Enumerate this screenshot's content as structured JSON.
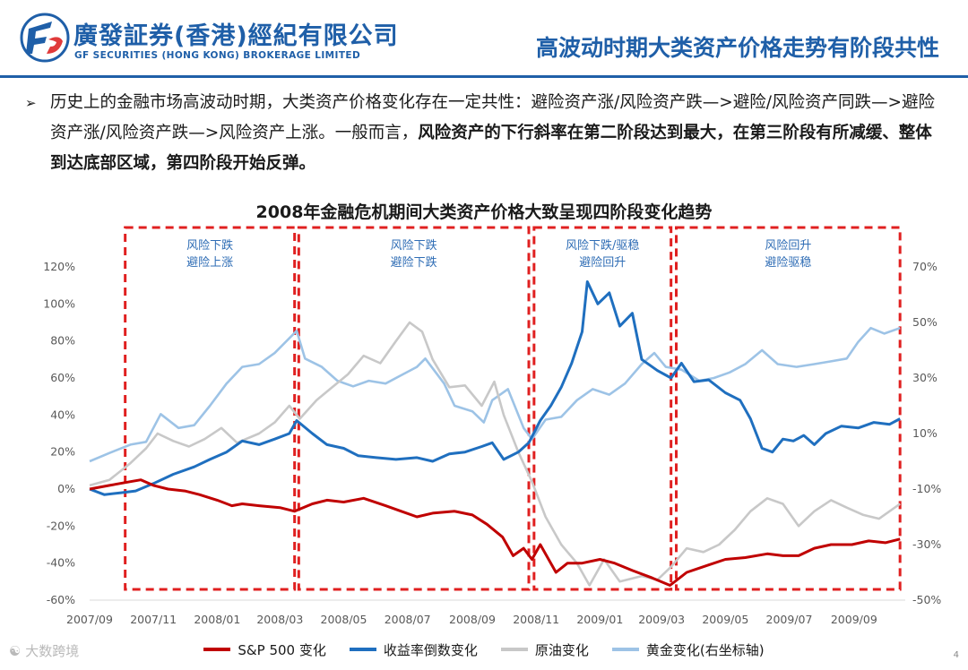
{
  "header": {
    "company_cn": "廣發証券(香港)經紀有限公司",
    "company_en": "GF SECURITIES (HONG KONG) BROKERAGE LIMITED",
    "page_title": "高波动时期大类资产价格走势有阶段共性"
  },
  "bullet": {
    "marker": "➢",
    "text_normal": "历史上的金融市场高波动时期，大类资产价格变化存在一定共性：避险资产涨/风险资产跌—>避险/风险资产同跌—>避险资产涨/风险资产跌—>风险资产上涨。一般而言，",
    "text_bold": "风险资产的下行斜率在第二阶段达到最大，在第三阶段有所减缓、整体到达底部区域，第四阶段开始反弹。"
  },
  "watermark": "大数跨境",
  "page_number": "4",
  "chart_data": {
    "type": "line",
    "title": "2008年金融危机期间大类资产价格大致呈现四阶段变化趋势",
    "x_tick_labels": [
      "2007/09",
      "2007/11",
      "2008/01",
      "2008/03",
      "2008/05",
      "2008/07",
      "2008/09",
      "2008/11",
      "2009/01",
      "2009/03",
      "2009/05",
      "2009/07",
      "2009/09"
    ],
    "x_range": [
      "2007-09-01",
      "2009-10-20"
    ],
    "y_left": {
      "ticks": [
        "120%",
        "100%",
        "80%",
        "60%",
        "40%",
        "20%",
        "0%",
        "-20%",
        "-40%",
        "-60%"
      ],
      "range": [
        -60,
        120
      ]
    },
    "y_right": {
      "ticks": [
        "70%",
        "50%",
        "30%",
        "10%",
        "-10%",
        "-30%",
        "-50%"
      ],
      "range": [
        -50,
        70
      ]
    },
    "grid": false,
    "legend_position": "bottom",
    "phases": [
      {
        "label_line1": "风险下跌",
        "label_line2": "避险上涨",
        "start": "2007-10-05",
        "end": "2008-03-15"
      },
      {
        "label_line1": "风险下跌",
        "label_line2": "避险下跌",
        "start": "2008-03-19",
        "end": "2008-10-25"
      },
      {
        "label_line1": "风险下跌/驱稳",
        "label_line2": "避险回升",
        "start": "2008-10-30",
        "end": "2009-03-10"
      },
      {
        "label_line1": "风险回升",
        "label_line2": "避险驱稳",
        "start": "2009-03-15",
        "end": "2009-10-15"
      }
    ],
    "series": [
      {
        "name": "S&P 500 变化",
        "axis": "left",
        "color": "#c00000",
        "points": [
          [
            "2007-09-01",
            0
          ],
          [
            "2007-09-20",
            2
          ],
          [
            "2007-10-10",
            4
          ],
          [
            "2007-10-20",
            5
          ],
          [
            "2007-11-01",
            2
          ],
          [
            "2007-11-15",
            0
          ],
          [
            "2007-12-01",
            -1
          ],
          [
            "2007-12-15",
            -3
          ],
          [
            "2008-01-01",
            -6
          ],
          [
            "2008-01-15",
            -9
          ],
          [
            "2008-01-25",
            -8
          ],
          [
            "2008-02-10",
            -9
          ],
          [
            "2008-03-01",
            -10
          ],
          [
            "2008-03-15",
            -12
          ],
          [
            "2008-04-01",
            -8
          ],
          [
            "2008-04-15",
            -6
          ],
          [
            "2008-05-01",
            -7
          ],
          [
            "2008-05-20",
            -5
          ],
          [
            "2008-06-10",
            -9
          ],
          [
            "2008-06-25",
            -12
          ],
          [
            "2008-07-10",
            -15
          ],
          [
            "2008-07-25",
            -13
          ],
          [
            "2008-08-15",
            -12
          ],
          [
            "2008-09-01",
            -14
          ],
          [
            "2008-09-15",
            -19
          ],
          [
            "2008-09-30",
            -26
          ],
          [
            "2008-10-10",
            -36
          ],
          [
            "2008-10-20",
            -32
          ],
          [
            "2008-10-28",
            -38
          ],
          [
            "2008-11-05",
            -30
          ],
          [
            "2008-11-20",
            -45
          ],
          [
            "2008-12-01",
            -40
          ],
          [
            "2008-12-15",
            -40
          ],
          [
            "2009-01-01",
            -38
          ],
          [
            "2009-01-15",
            -40
          ],
          [
            "2009-02-01",
            -44
          ],
          [
            "2009-02-20",
            -48
          ],
          [
            "2009-03-09",
            -52
          ],
          [
            "2009-03-25",
            -45
          ],
          [
            "2009-04-15",
            -41
          ],
          [
            "2009-05-01",
            -38
          ],
          [
            "2009-05-20",
            -37
          ],
          [
            "2009-06-10",
            -35
          ],
          [
            "2009-06-25",
            -36
          ],
          [
            "2009-07-10",
            -36
          ],
          [
            "2009-07-25",
            -32
          ],
          [
            "2009-08-10",
            -30
          ],
          [
            "2009-08-30",
            -30
          ],
          [
            "2009-09-15",
            -28
          ],
          [
            "2009-10-01",
            -29
          ],
          [
            "2009-10-15",
            -27
          ]
        ]
      },
      {
        "name": "收益率倒数变化",
        "axis": "left",
        "color": "#1f6fbf",
        "points": [
          [
            "2007-09-01",
            0
          ],
          [
            "2007-09-15",
            -3
          ],
          [
            "2007-10-01",
            -2
          ],
          [
            "2007-10-15",
            -1
          ],
          [
            "2007-11-01",
            3
          ],
          [
            "2007-11-20",
            8
          ],
          [
            "2007-12-10",
            12
          ],
          [
            "2007-12-25",
            16
          ],
          [
            "2008-01-10",
            20
          ],
          [
            "2008-01-25",
            26
          ],
          [
            "2008-02-10",
            24
          ],
          [
            "2008-02-25",
            27
          ],
          [
            "2008-03-10",
            30
          ],
          [
            "2008-03-17",
            37
          ],
          [
            "2008-04-01",
            30
          ],
          [
            "2008-04-15",
            24
          ],
          [
            "2008-05-01",
            22
          ],
          [
            "2008-05-15",
            18
          ],
          [
            "2008-06-01",
            17
          ],
          [
            "2008-06-20",
            16
          ],
          [
            "2008-07-10",
            17
          ],
          [
            "2008-07-25",
            15
          ],
          [
            "2008-08-10",
            19
          ],
          [
            "2008-08-25",
            20
          ],
          [
            "2008-09-10",
            23
          ],
          [
            "2008-09-20",
            25
          ],
          [
            "2008-10-01",
            16
          ],
          [
            "2008-10-15",
            20
          ],
          [
            "2008-10-25",
            25
          ],
          [
            "2008-11-05",
            37
          ],
          [
            "2008-11-15",
            45
          ],
          [
            "2008-11-25",
            55
          ],
          [
            "2008-12-05",
            68
          ],
          [
            "2008-12-15",
            85
          ],
          [
            "2008-12-20",
            112
          ],
          [
            "2008-12-30",
            100
          ],
          [
            "2009-01-10",
            106
          ],
          [
            "2009-01-20",
            88
          ],
          [
            "2009-02-01",
            95
          ],
          [
            "2009-02-10",
            70
          ],
          [
            "2009-02-25",
            64
          ],
          [
            "2009-03-10",
            60
          ],
          [
            "2009-03-20",
            68
          ],
          [
            "2009-04-01",
            58
          ],
          [
            "2009-04-15",
            59
          ],
          [
            "2009-05-01",
            52
          ],
          [
            "2009-05-15",
            48
          ],
          [
            "2009-05-25",
            38
          ],
          [
            "2009-06-05",
            22
          ],
          [
            "2009-06-15",
            20
          ],
          [
            "2009-06-25",
            27
          ],
          [
            "2009-07-05",
            26
          ],
          [
            "2009-07-15",
            29
          ],
          [
            "2009-07-25",
            24
          ],
          [
            "2009-08-05",
            30
          ],
          [
            "2009-08-20",
            34
          ],
          [
            "2009-09-05",
            33
          ],
          [
            "2009-09-20",
            36
          ],
          [
            "2009-10-05",
            35
          ],
          [
            "2009-10-15",
            38
          ]
        ]
      },
      {
        "name": "原油变化",
        "axis": "left",
        "color": "#c8c8c8",
        "points": [
          [
            "2007-09-01",
            2
          ],
          [
            "2007-09-20",
            5
          ],
          [
            "2007-10-10",
            14
          ],
          [
            "2007-10-25",
            22
          ],
          [
            "2007-11-05",
            30
          ],
          [
            "2007-11-20",
            26
          ],
          [
            "2007-12-05",
            23
          ],
          [
            "2007-12-20",
            27
          ],
          [
            "2008-01-05",
            33
          ],
          [
            "2008-01-20",
            25
          ],
          [
            "2008-02-10",
            30
          ],
          [
            "2008-02-25",
            36
          ],
          [
            "2008-03-10",
            45
          ],
          [
            "2008-03-20",
            38
          ],
          [
            "2008-04-05",
            48
          ],
          [
            "2008-04-20",
            55
          ],
          [
            "2008-05-05",
            62
          ],
          [
            "2008-05-20",
            72
          ],
          [
            "2008-06-05",
            68
          ],
          [
            "2008-06-20",
            80
          ],
          [
            "2008-07-03",
            90
          ],
          [
            "2008-07-15",
            85
          ],
          [
            "2008-07-25",
            70
          ],
          [
            "2008-08-10",
            55
          ],
          [
            "2008-08-25",
            56
          ],
          [
            "2008-09-10",
            45
          ],
          [
            "2008-09-22",
            58
          ],
          [
            "2008-10-01",
            40
          ],
          [
            "2008-10-15",
            20
          ],
          [
            "2008-10-28",
            4
          ],
          [
            "2008-11-10",
            -15
          ],
          [
            "2008-11-25",
            -30
          ],
          [
            "2008-12-10",
            -40
          ],
          [
            "2008-12-22",
            -52
          ],
          [
            "2009-01-05",
            -38
          ],
          [
            "2009-01-20",
            -50
          ],
          [
            "2009-02-10",
            -47
          ],
          [
            "2009-02-25",
            -49
          ],
          [
            "2009-03-10",
            -42
          ],
          [
            "2009-03-25",
            -32
          ],
          [
            "2009-04-10",
            -34
          ],
          [
            "2009-04-25",
            -30
          ],
          [
            "2009-05-10",
            -22
          ],
          [
            "2009-05-25",
            -12
          ],
          [
            "2009-06-10",
            -5
          ],
          [
            "2009-06-25",
            -8
          ],
          [
            "2009-07-10",
            -20
          ],
          [
            "2009-07-25",
            -12
          ],
          [
            "2009-08-10",
            -6
          ],
          [
            "2009-08-25",
            -10
          ],
          [
            "2009-09-10",
            -14
          ],
          [
            "2009-09-25",
            -16
          ],
          [
            "2009-10-15",
            -8
          ]
        ]
      },
      {
        "name": "黄金变化(右坐标轴)",
        "axis": "right",
        "color": "#9dc3e6",
        "points": [
          [
            "2007-09-01",
            0
          ],
          [
            "2007-09-20",
            3
          ],
          [
            "2007-10-10",
            6
          ],
          [
            "2007-10-25",
            7
          ],
          [
            "2007-11-08",
            17
          ],
          [
            "2007-11-25",
            12
          ],
          [
            "2007-12-10",
            13
          ],
          [
            "2007-12-25",
            20
          ],
          [
            "2008-01-10",
            28
          ],
          [
            "2008-01-25",
            34
          ],
          [
            "2008-02-10",
            35
          ],
          [
            "2008-02-25",
            39
          ],
          [
            "2008-03-17",
            47
          ],
          [
            "2008-03-25",
            37
          ],
          [
            "2008-04-10",
            34
          ],
          [
            "2008-04-25",
            29
          ],
          [
            "2008-05-10",
            27
          ],
          [
            "2008-05-25",
            29
          ],
          [
            "2008-06-10",
            28
          ],
          [
            "2008-06-25",
            31
          ],
          [
            "2008-07-10",
            34
          ],
          [
            "2008-07-18",
            37
          ],
          [
            "2008-08-05",
            28
          ],
          [
            "2008-08-15",
            20
          ],
          [
            "2008-09-01",
            18
          ],
          [
            "2008-09-12",
            14
          ],
          [
            "2008-09-20",
            22
          ],
          [
            "2008-10-05",
            26
          ],
          [
            "2008-10-20",
            12
          ],
          [
            "2008-10-28",
            8
          ],
          [
            "2008-11-10",
            15
          ],
          [
            "2008-11-25",
            16
          ],
          [
            "2008-12-10",
            22
          ],
          [
            "2008-12-25",
            26
          ],
          [
            "2009-01-10",
            24
          ],
          [
            "2009-01-25",
            28
          ],
          [
            "2009-02-10",
            35
          ],
          [
            "2009-02-22",
            39
          ],
          [
            "2009-03-05",
            34
          ],
          [
            "2009-03-20",
            33
          ],
          [
            "2009-04-06",
            29
          ],
          [
            "2009-04-20",
            30
          ],
          [
            "2009-05-05",
            32
          ],
          [
            "2009-05-20",
            35
          ],
          [
            "2009-06-05",
            40
          ],
          [
            "2009-06-20",
            35
          ],
          [
            "2009-07-08",
            34
          ],
          [
            "2009-07-25",
            35
          ],
          [
            "2009-08-10",
            36
          ],
          [
            "2009-08-25",
            37
          ],
          [
            "2009-09-05",
            43
          ],
          [
            "2009-09-17",
            48
          ],
          [
            "2009-09-30",
            46
          ],
          [
            "2009-10-15",
            48
          ]
        ]
      }
    ]
  }
}
